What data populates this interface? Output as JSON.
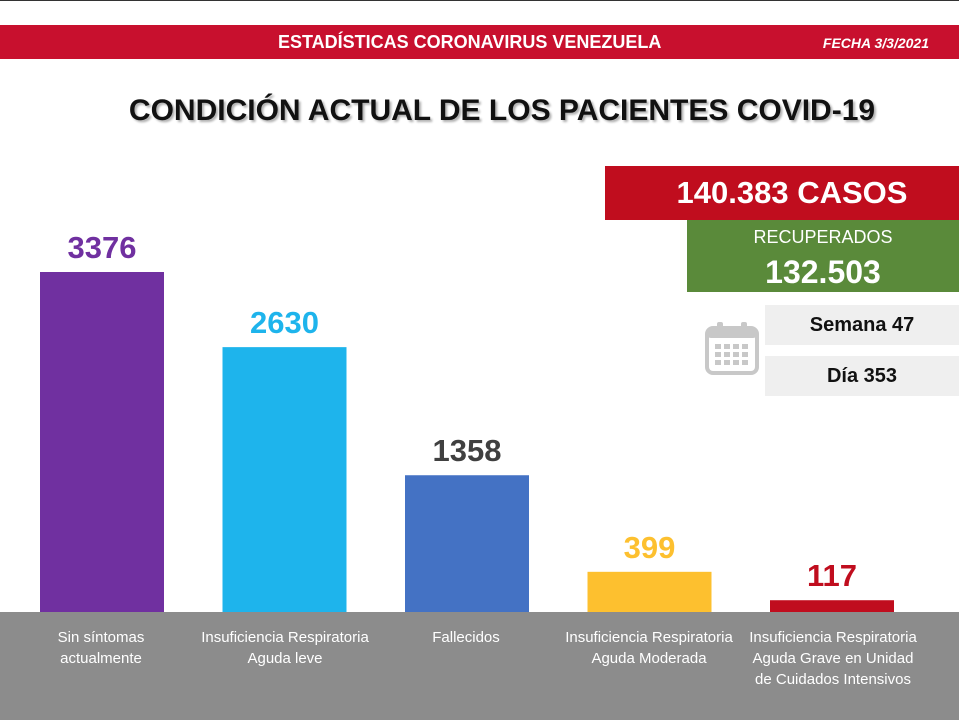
{
  "header": {
    "title": "ESTADÍSTICAS CORONAVIRUS VENEZUELA",
    "date": "FECHA 3/3/2021"
  },
  "title": "CONDICIÓN ACTUAL DE LOS PACIENTES COVID-19",
  "casos": "140.383 CASOS",
  "recuperados": {
    "label": "RECUPERADOS",
    "value": "132.503"
  },
  "semana": "Semana 47",
  "dia": "Día 353",
  "calendar_icon": "calendar-icon",
  "chart_data": {
    "type": "bar",
    "categories": [
      "Sin síntomas actualmente",
      "Insuficiencia Respiratoria Aguda leve",
      "Fallecidos",
      "Insuficiencia Respiratoria Aguda Moderada",
      "Insuficiencia Respiratoria Aguda Grave en Unidad de Cuidados Intensivos"
    ],
    "values": [
      3376,
      2630,
      1358,
      399,
      117
    ],
    "data_labels": [
      "3376",
      "2630",
      "1358",
      "399",
      "117"
    ],
    "colors": [
      "#7030a0",
      "#1eb4ec",
      "#4472c4",
      "#fdc02f",
      "#c00d1e"
    ],
    "label_colors": [
      "#7030a0",
      "#1eb4ec",
      "#404040",
      "#fdc02f",
      "#c00d1e"
    ],
    "ylim": [
      0,
      3600
    ],
    "grid": false,
    "legend": "none"
  }
}
